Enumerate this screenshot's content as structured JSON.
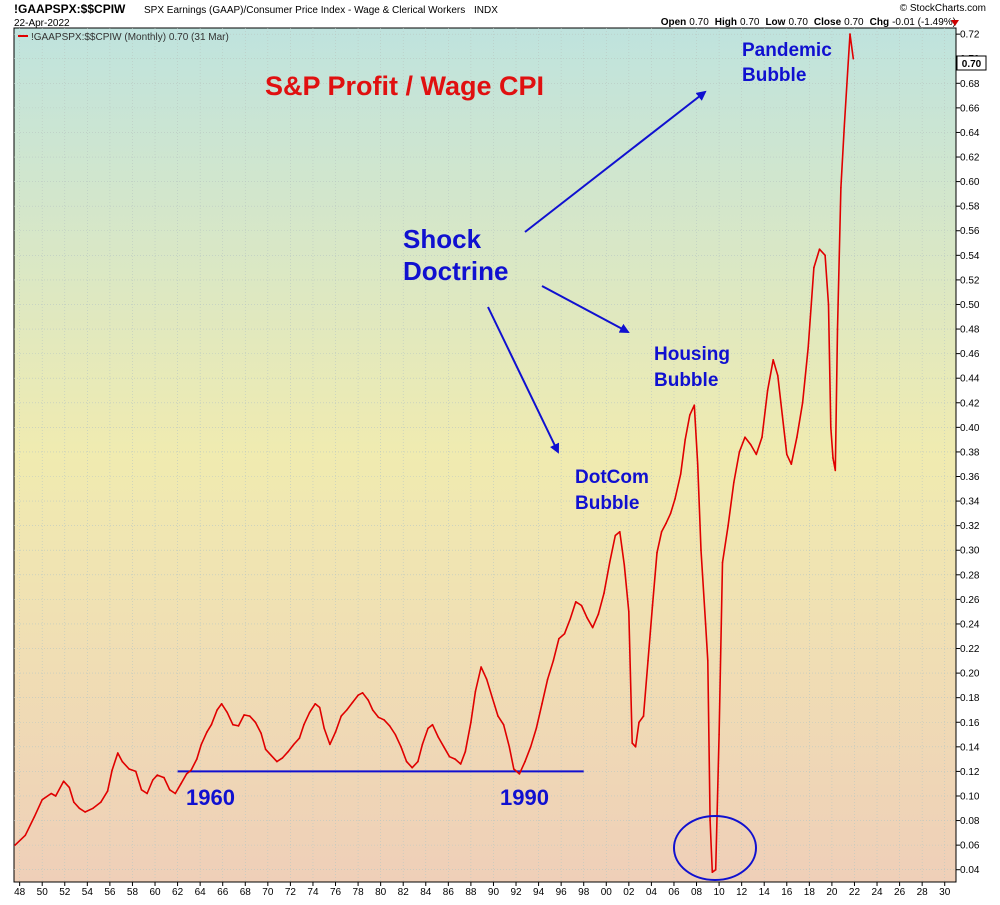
{
  "header": {
    "symbol": "!GAAPSPX:$$CPIW",
    "description": "SPX Earnings (GAAP)/Consumer Price Index - Wage & Clerical Workers",
    "exchange": "INDX",
    "date": "22-Apr-2022",
    "brand": "© StockCharts.com",
    "ohlc": [
      {
        "label": "Open",
        "value": "0.70"
      },
      {
        "label": "High",
        "value": "0.70"
      },
      {
        "label": "Low",
        "value": "0.70"
      },
      {
        "label": "Close",
        "value": "0.70"
      },
      {
        "label": "Chg",
        "value": "-0.01 (-1.49%)"
      }
    ]
  },
  "legend": {
    "text": "!GAAPSPX:$$CPIW (Monthly) 0.70 (31 Mar)"
  },
  "last_value_label": "0.70",
  "colors": {
    "line": "#e00000",
    "annotation": "#1010d0",
    "title": "#e01010",
    "bg_top": "#bfe3de",
    "bg_mid": "#f0ebb0",
    "bg_bottom": "#efcfb8"
  },
  "annotations": {
    "title": "S&P Profit / Wage CPI",
    "shock": [
      "Shock",
      "Doctrine"
    ],
    "pandemic": [
      "Pandemic",
      "Bubble"
    ],
    "housing": [
      "Housing",
      "Bubble"
    ],
    "dotcom": [
      "DotCom",
      "Bubble"
    ],
    "year_1960": "1960",
    "year_1990": "1990",
    "baseline": {
      "x0": 1962.0,
      "x1": 1998.0,
      "y": 0.12
    }
  },
  "chart_data": {
    "type": "line",
    "title": "",
    "xlabel": "",
    "ylabel": "",
    "xlim": [
      1947.5,
      2031.0
    ],
    "ylim": [
      0.03,
      0.725
    ],
    "grid": true,
    "x_tick_labels": [
      "48",
      "50",
      "52",
      "54",
      "56",
      "58",
      "60",
      "62",
      "64",
      "66",
      "68",
      "70",
      "72",
      "74",
      "76",
      "78",
      "80",
      "82",
      "84",
      "86",
      "88",
      "90",
      "92",
      "94",
      "96",
      "98",
      "00",
      "02",
      "04",
      "06",
      "08",
      "10",
      "12",
      "14",
      "16",
      "18",
      "20",
      "22",
      "24",
      "26",
      "28",
      "30"
    ],
    "x_tick_years": [
      1948,
      1950,
      1952,
      1954,
      1956,
      1958,
      1960,
      1962,
      1964,
      1966,
      1968,
      1970,
      1972,
      1974,
      1976,
      1978,
      1980,
      1982,
      1984,
      1986,
      1988,
      1990,
      1992,
      1994,
      1996,
      1998,
      2000,
      2002,
      2004,
      2006,
      2008,
      2010,
      2012,
      2014,
      2016,
      2018,
      2020,
      2022,
      2024,
      2026,
      2028,
      2030
    ],
    "y_ticks": [
      0.04,
      0.06,
      0.08,
      0.1,
      0.12,
      0.14,
      0.16,
      0.18,
      0.2,
      0.22,
      0.24,
      0.26,
      0.28,
      0.3,
      0.32,
      0.34,
      0.36,
      0.38,
      0.4,
      0.42,
      0.44,
      0.46,
      0.48,
      0.5,
      0.52,
      0.54,
      0.56,
      0.58,
      0.6,
      0.62,
      0.64,
      0.66,
      0.68,
      0.7,
      0.72
    ],
    "series": [
      {
        "values": [
          [
            1947.6,
            0.06
          ],
          [
            1948.5,
            0.068
          ],
          [
            1949.3,
            0.083
          ],
          [
            1950.0,
            0.097
          ],
          [
            1950.8,
            0.102
          ],
          [
            1951.2,
            0.1
          ],
          [
            1951.9,
            0.112
          ],
          [
            1952.4,
            0.107
          ],
          [
            1952.8,
            0.095
          ],
          [
            1953.3,
            0.09
          ],
          [
            1953.8,
            0.087
          ],
          [
            1954.5,
            0.09
          ],
          [
            1955.2,
            0.095
          ],
          [
            1955.8,
            0.104
          ],
          [
            1956.2,
            0.121
          ],
          [
            1956.7,
            0.135
          ],
          [
            1957.1,
            0.128
          ],
          [
            1957.7,
            0.122
          ],
          [
            1958.3,
            0.12
          ],
          [
            1958.8,
            0.105
          ],
          [
            1959.3,
            0.102
          ],
          [
            1959.8,
            0.113
          ],
          [
            1960.2,
            0.117
          ],
          [
            1960.8,
            0.115
          ],
          [
            1961.3,
            0.105
          ],
          [
            1961.8,
            0.102
          ],
          [
            1962.3,
            0.11
          ],
          [
            1962.8,
            0.118
          ],
          [
            1963.2,
            0.121
          ],
          [
            1963.7,
            0.13
          ],
          [
            1964.1,
            0.142
          ],
          [
            1964.6,
            0.152
          ],
          [
            1965.0,
            0.158
          ],
          [
            1965.5,
            0.17
          ],
          [
            1965.9,
            0.175
          ],
          [
            1966.4,
            0.168
          ],
          [
            1966.9,
            0.158
          ],
          [
            1967.4,
            0.157
          ],
          [
            1967.9,
            0.166
          ],
          [
            1968.4,
            0.165
          ],
          [
            1968.9,
            0.16
          ],
          [
            1969.4,
            0.151
          ],
          [
            1969.8,
            0.138
          ],
          [
            1970.3,
            0.133
          ],
          [
            1970.8,
            0.128
          ],
          [
            1971.3,
            0.131
          ],
          [
            1971.8,
            0.136
          ],
          [
            1972.3,
            0.142
          ],
          [
            1972.8,
            0.147
          ],
          [
            1973.2,
            0.158
          ],
          [
            1973.7,
            0.168
          ],
          [
            1974.2,
            0.175
          ],
          [
            1974.6,
            0.172
          ],
          [
            1975.0,
            0.155
          ],
          [
            1975.5,
            0.142
          ],
          [
            1976.0,
            0.152
          ],
          [
            1976.5,
            0.165
          ],
          [
            1977.0,
            0.17
          ],
          [
            1977.5,
            0.176
          ],
          [
            1978.0,
            0.182
          ],
          [
            1978.4,
            0.184
          ],
          [
            1978.9,
            0.178
          ],
          [
            1979.3,
            0.17
          ],
          [
            1979.8,
            0.164
          ],
          [
            1980.3,
            0.162
          ],
          [
            1980.8,
            0.157
          ],
          [
            1981.3,
            0.15
          ],
          [
            1981.8,
            0.14
          ],
          [
            1982.3,
            0.128
          ],
          [
            1982.8,
            0.123
          ],
          [
            1983.3,
            0.128
          ],
          [
            1983.7,
            0.142
          ],
          [
            1984.2,
            0.155
          ],
          [
            1984.6,
            0.158
          ],
          [
            1985.1,
            0.148
          ],
          [
            1985.6,
            0.14
          ],
          [
            1986.1,
            0.132
          ],
          [
            1986.6,
            0.13
          ],
          [
            1987.1,
            0.126
          ],
          [
            1987.5,
            0.136
          ],
          [
            1988.0,
            0.16
          ],
          [
            1988.4,
            0.185
          ],
          [
            1988.9,
            0.205
          ],
          [
            1989.4,
            0.195
          ],
          [
            1989.9,
            0.18
          ],
          [
            1990.4,
            0.165
          ],
          [
            1990.9,
            0.158
          ],
          [
            1991.4,
            0.14
          ],
          [
            1991.8,
            0.122
          ],
          [
            1992.3,
            0.118
          ],
          [
            1992.8,
            0.128
          ],
          [
            1993.3,
            0.14
          ],
          [
            1993.8,
            0.155
          ],
          [
            1994.3,
            0.175
          ],
          [
            1994.8,
            0.195
          ],
          [
            1995.3,
            0.21
          ],
          [
            1995.8,
            0.228
          ],
          [
            1996.3,
            0.232
          ],
          [
            1996.8,
            0.244
          ],
          [
            1997.3,
            0.258
          ],
          [
            1997.8,
            0.255
          ],
          [
            1998.3,
            0.245
          ],
          [
            1998.8,
            0.237
          ],
          [
            1999.3,
            0.248
          ],
          [
            1999.8,
            0.265
          ],
          [
            2000.3,
            0.29
          ],
          [
            2000.8,
            0.312
          ],
          [
            2001.2,
            0.315
          ],
          [
            2001.6,
            0.288
          ],
          [
            2002.0,
            0.25
          ],
          [
            2002.3,
            0.143
          ],
          [
            2002.6,
            0.14
          ],
          [
            2002.9,
            0.16
          ],
          [
            2003.3,
            0.165
          ],
          [
            2003.7,
            0.21
          ],
          [
            2004.1,
            0.255
          ],
          [
            2004.5,
            0.298
          ],
          [
            2004.9,
            0.315
          ],
          [
            2005.3,
            0.322
          ],
          [
            2005.7,
            0.33
          ],
          [
            2006.1,
            0.342
          ],
          [
            2006.6,
            0.362
          ],
          [
            2007.0,
            0.39
          ],
          [
            2007.4,
            0.41
          ],
          [
            2007.8,
            0.418
          ],
          [
            2008.1,
            0.37
          ],
          [
            2008.4,
            0.3
          ],
          [
            2008.8,
            0.24
          ],
          [
            2009.0,
            0.21
          ],
          [
            2009.2,
            0.08
          ],
          [
            2009.4,
            0.038
          ],
          [
            2009.7,
            0.04
          ],
          [
            2010.0,
            0.15
          ],
          [
            2010.3,
            0.29
          ],
          [
            2010.8,
            0.32
          ],
          [
            2011.3,
            0.355
          ],
          [
            2011.8,
            0.38
          ],
          [
            2012.3,
            0.392
          ],
          [
            2012.8,
            0.386
          ],
          [
            2013.3,
            0.378
          ],
          [
            2013.8,
            0.392
          ],
          [
            2014.3,
            0.43
          ],
          [
            2014.8,
            0.455
          ],
          [
            2015.2,
            0.442
          ],
          [
            2015.6,
            0.41
          ],
          [
            2016.0,
            0.378
          ],
          [
            2016.4,
            0.37
          ],
          [
            2016.9,
            0.392
          ],
          [
            2017.4,
            0.42
          ],
          [
            2017.9,
            0.465
          ],
          [
            2018.4,
            0.53
          ],
          [
            2018.9,
            0.545
          ],
          [
            2019.4,
            0.54
          ],
          [
            2019.7,
            0.5
          ],
          [
            2019.9,
            0.4
          ],
          [
            2020.1,
            0.375
          ],
          [
            2020.3,
            0.365
          ],
          [
            2020.5,
            0.48
          ],
          [
            2020.8,
            0.595
          ],
          [
            2021.1,
            0.645
          ],
          [
            2021.4,
            0.69
          ],
          [
            2021.6,
            0.72
          ],
          [
            2021.9,
            0.7
          ]
        ]
      }
    ]
  }
}
